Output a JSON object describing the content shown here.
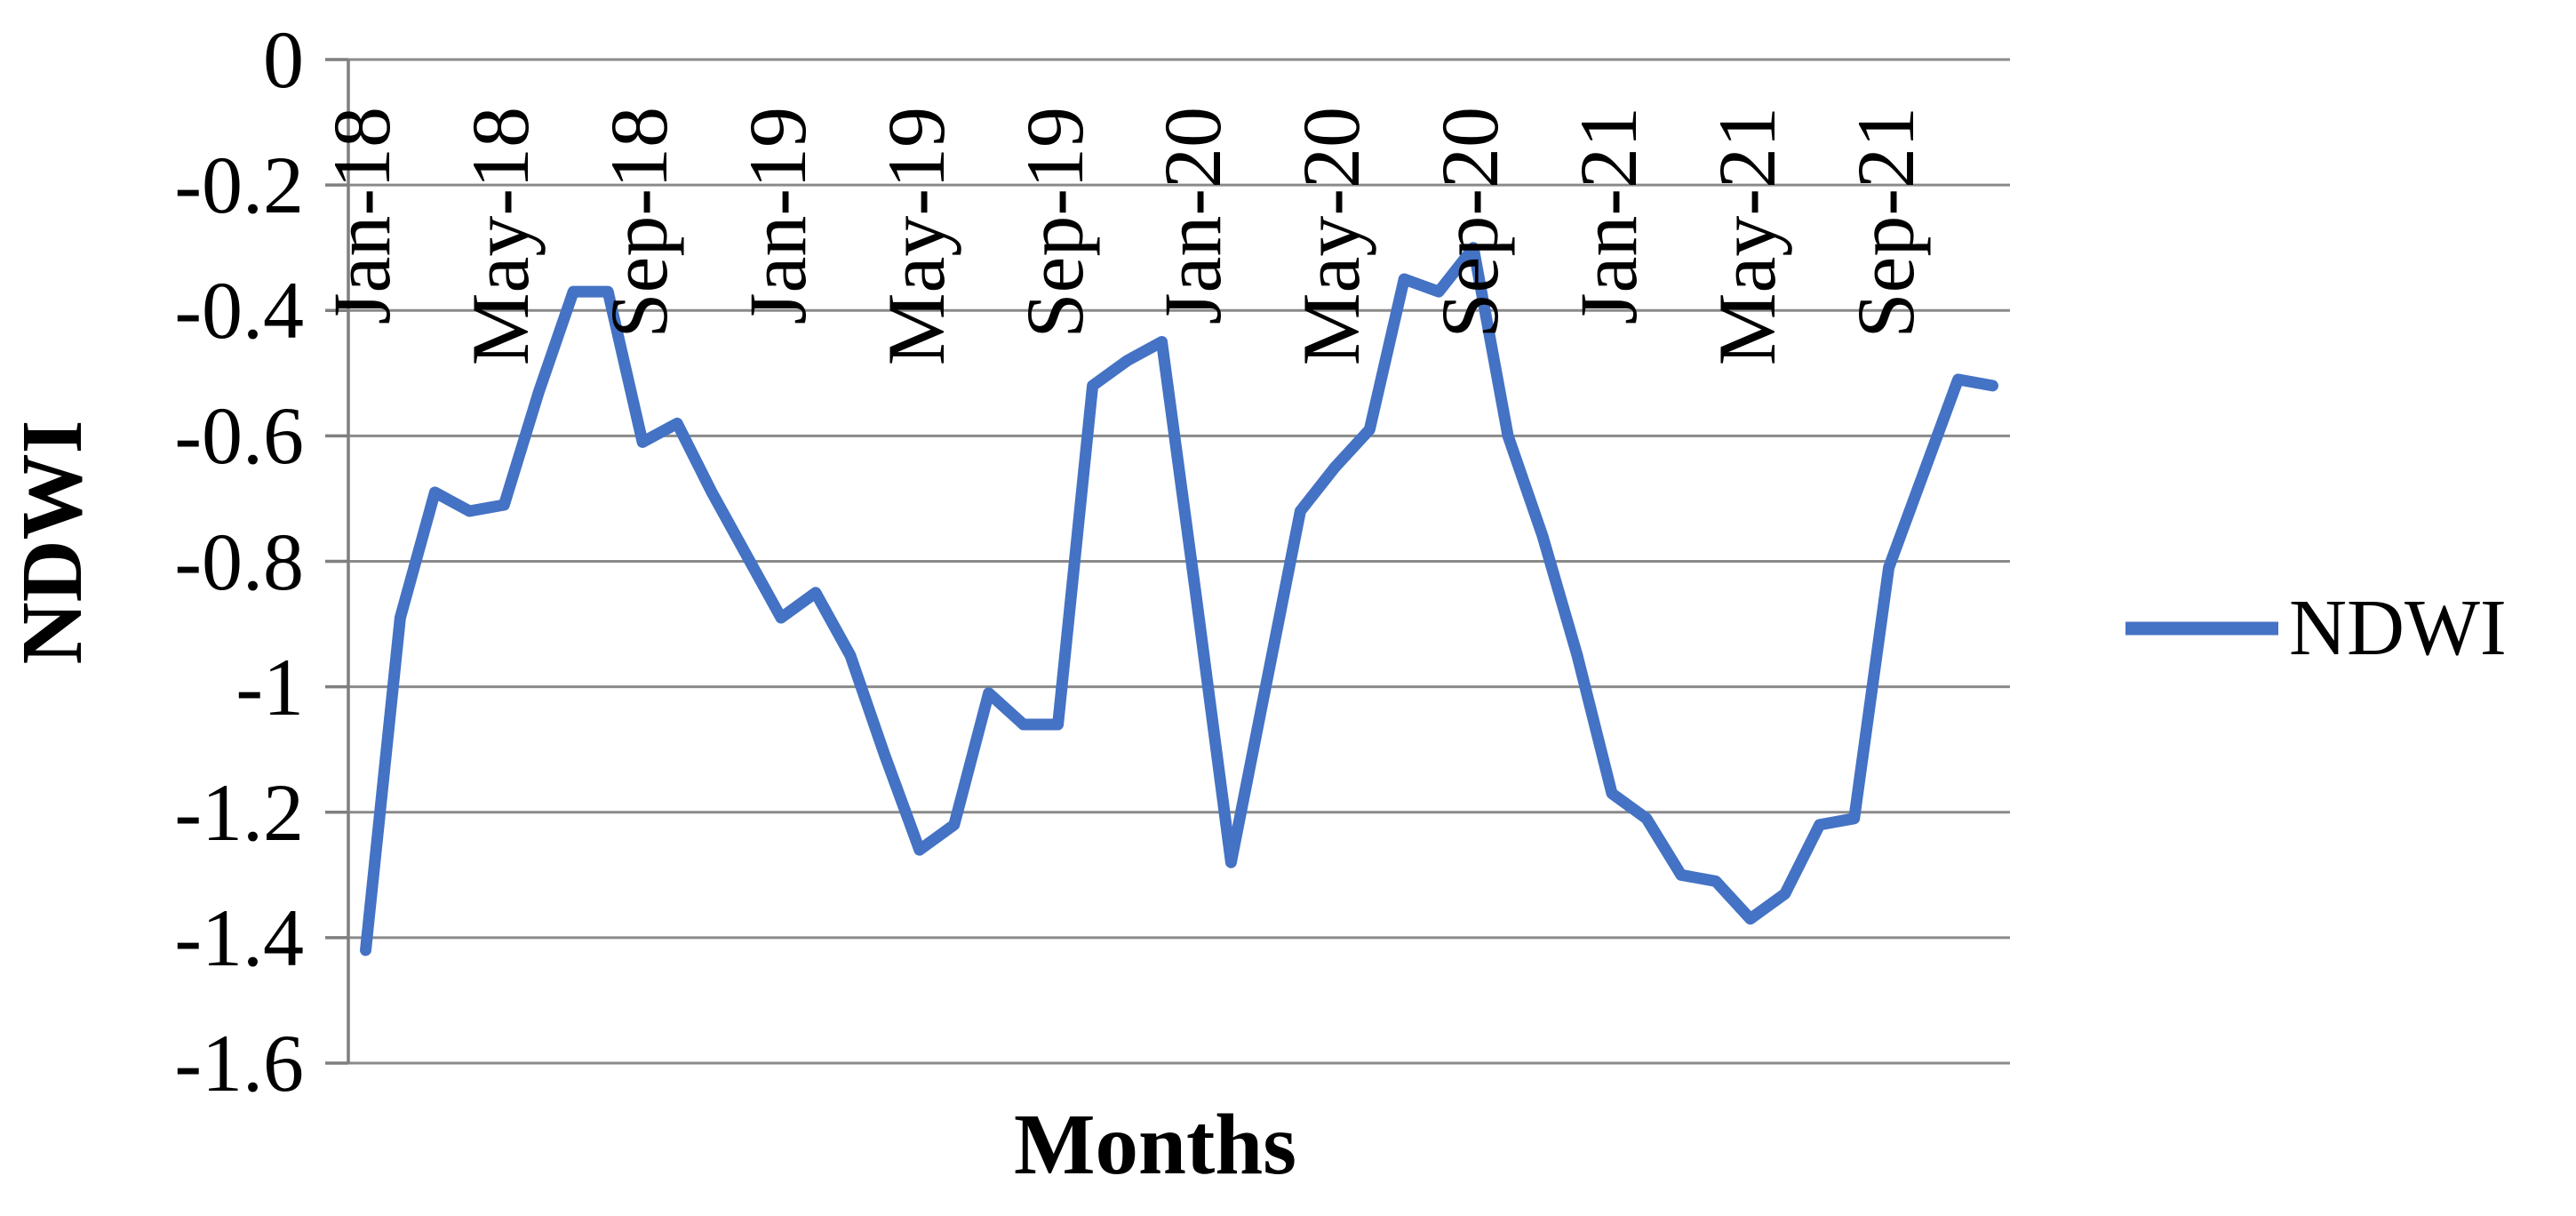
{
  "chart_data": {
    "type": "line",
    "title": "",
    "xlabel": "Months",
    "ylabel": "NDWI",
    "grid": "horizontal",
    "legend_position": "right-middle",
    "x": [
      "Jan-18",
      "Feb-18",
      "Mar-18",
      "Apr-18",
      "May-18",
      "Jun-18",
      "Jul-18",
      "Aug-18",
      "Sep-18",
      "Oct-18",
      "Nov-18",
      "Dec-18",
      "Jan-19",
      "Feb-19",
      "Mar-19",
      "Apr-19",
      "May-19",
      "Jun-19",
      "Jul-19",
      "Aug-19",
      "Sep-19",
      "Oct-19",
      "Nov-19",
      "Dec-19",
      "Jan-20",
      "Feb-20",
      "Mar-20",
      "Apr-20",
      "May-20",
      "Jun-20",
      "Jul-20",
      "Aug-20",
      "Sep-20",
      "Oct-20",
      "Nov-20",
      "Dec-20",
      "Jan-21",
      "Feb-21",
      "Mar-21",
      "Apr-21",
      "May-21",
      "Jun-21",
      "Jul-21",
      "Aug-21",
      "Sep-21",
      "Oct-21",
      "Nov-21",
      "Dec-21"
    ],
    "x_tick_label_every": 4,
    "visible_x_tick_labels": [
      "Jan-18",
      "May-18",
      "Sep-18",
      "Jan-19",
      "May-19",
      "Sep-19",
      "Jan-20",
      "May-20",
      "Sep-20",
      "Jan-21",
      "May-21",
      "Sep-21"
    ],
    "x_tick_rotation_degrees": -90,
    "series": [
      {
        "name": "NDWI",
        "values": [
          -1.42,
          -0.89,
          -0.69,
          -0.72,
          -0.71,
          -0.53,
          -0.37,
          -0.37,
          -0.61,
          -0.58,
          -0.69,
          -0.79,
          -0.89,
          -0.85,
          -0.95,
          -1.11,
          -1.26,
          -1.22,
          -1.01,
          -1.06,
          -1.06,
          -0.52,
          -0.48,
          -0.45,
          -0.86,
          -1.28,
          -1.0,
          -0.72,
          -0.65,
          -0.59,
          -0.35,
          -0.37,
          -0.3,
          -0.6,
          -0.76,
          -0.95,
          -1.17,
          -1.21,
          -1.3,
          -1.31,
          -1.37,
          -1.33,
          -1.22,
          -1.21,
          -0.81,
          -0.66,
          -0.51,
          -0.52
        ]
      }
    ],
    "ylim": [
      -1.6,
      0
    ],
    "ytick_interval": 0.2,
    "ytick_labels": [
      "0",
      "-0.2",
      "-0.4",
      "-0.6",
      "-0.8",
      "-1",
      "-1.2",
      "-1.4",
      "-1.6"
    ],
    "colors": {
      "series": "#4472C4",
      "gridline": "#8a8a8a",
      "axis": "#7f7f7f",
      "text": "#000000",
      "background": "#ffffff"
    }
  }
}
